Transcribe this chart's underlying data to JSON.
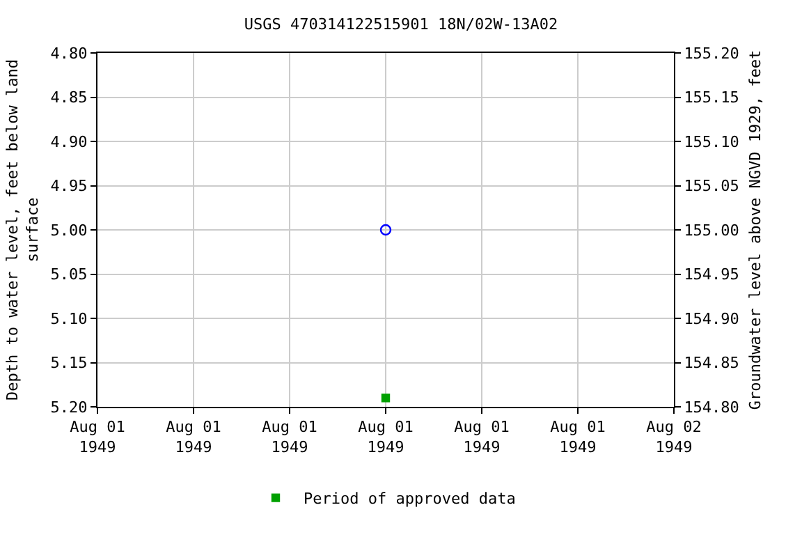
{
  "chart_data": {
    "type": "scatter",
    "title": "USGS 470314122515901 18N/02W-13A02",
    "ylabel": "Depth to water level, feet below land surface",
    "y2label": "Groundwater level above NGVD 1929, feet",
    "x": [
      "1949-08-01T12:00"
    ],
    "series": [
      {
        "color": "#0000ff",
        "marker": "circle",
        "values": [
          5.0
        ]
      },
      {
        "name": "Period of approved data",
        "color": "#00a000",
        "marker": "square",
        "values": [
          5.19
        ]
      }
    ],
    "xlim": [
      "1949-08-01T00:00",
      "1949-08-02T00:00"
    ],
    "xticks": [
      {
        "value": "1949-08-01T00:00",
        "label": "Aug 01\n1949"
      },
      {
        "value": "1949-08-01T04:00",
        "label": "Aug 01\n1949"
      },
      {
        "value": "1949-08-01T08:00",
        "label": "Aug 01\n1949"
      },
      {
        "value": "1949-08-01T12:00",
        "label": "Aug 01\n1949"
      },
      {
        "value": "1949-08-01T16:00",
        "label": "Aug 01\n1949"
      },
      {
        "value": "1949-08-01T20:00",
        "label": "Aug 01\n1949"
      },
      {
        "value": "1949-08-02T00:00",
        "label": "Aug 02\n1949"
      }
    ],
    "ylim": [
      5.2,
      4.8
    ],
    "yticks": [
      {
        "value": 4.8,
        "label": "4.80"
      },
      {
        "value": 4.85,
        "label": "4.85"
      },
      {
        "value": 4.9,
        "label": "4.90"
      },
      {
        "value": 4.95,
        "label": "4.95"
      },
      {
        "value": 5.0,
        "label": "5.00"
      },
      {
        "value": 5.05,
        "label": "5.05"
      },
      {
        "value": 5.1,
        "label": "5.10"
      },
      {
        "value": 5.15,
        "label": "5.15"
      },
      {
        "value": 5.2,
        "label": "5.20"
      }
    ],
    "y2lim": [
      154.8,
      155.2
    ],
    "y2ticks": [
      {
        "value": 154.8,
        "label": "154.80"
      },
      {
        "value": 154.85,
        "label": "154.85"
      },
      {
        "value": 154.9,
        "label": "154.90"
      },
      {
        "value": 154.95,
        "label": "154.95"
      },
      {
        "value": 155.0,
        "label": "155.00"
      },
      {
        "value": 155.05,
        "label": "155.05"
      },
      {
        "value": 155.1,
        "label": "155.10"
      },
      {
        "value": 155.15,
        "label": "155.15"
      },
      {
        "value": 155.2,
        "label": "155.20"
      }
    ],
    "grid": true,
    "legend": "bottom"
  }
}
